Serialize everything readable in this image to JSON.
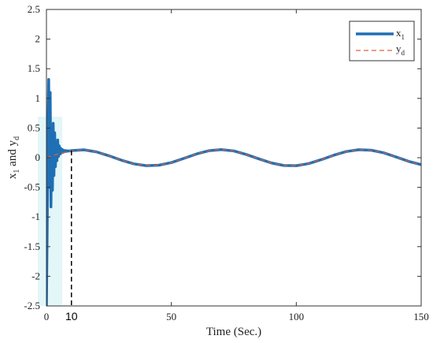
{
  "chart_data": {
    "type": "line",
    "xlabel": "Time (Sec.)",
    "ylabel": "x1 and yd",
    "ylabel_parts": {
      "p1": "x",
      "s1": "1",
      "p2": " and y",
      "s2": "d"
    },
    "xlim": [
      0,
      150
    ],
    "ylim": [
      -2.5,
      2.5
    ],
    "xticks": [
      "0",
      "50",
      "100",
      "150"
    ],
    "xtick_values": [
      0,
      50,
      100,
      150
    ],
    "yticks": [
      "-2.5",
      "-2",
      "-1.5",
      "-1",
      "-0.5",
      "0",
      "0.5",
      "1",
      "1.5",
      "2",
      "2.5"
    ],
    "ytick_values": [
      -2.5,
      -2,
      -1.5,
      -1,
      -0.5,
      0,
      0.5,
      1,
      1.5,
      2,
      2.5
    ],
    "grid": false,
    "legend_position": "top-right",
    "series": [
      {
        "name": "x1",
        "legend_main": "x",
        "legend_sub": "1",
        "color": "#1f6fb4",
        "style": "solid",
        "x": [
          0,
          0.3,
          0.6,
          0.9,
          1.2,
          1.5,
          1.8,
          2.1,
          2.4,
          2.7,
          3.0,
          3.3,
          3.6,
          3.9,
          4.2,
          4.5,
          4.8,
          5.1,
          5.4,
          5.7,
          6.0,
          6.3,
          6.6,
          6.9,
          7.2,
          7.5,
          7.8,
          8.1,
          8.4,
          8.7,
          9.0,
          9.5,
          10,
          15,
          20,
          25,
          30,
          35,
          40,
          45,
          50,
          55,
          60,
          65,
          70,
          75,
          80,
          85,
          90,
          95,
          100,
          105,
          110,
          115,
          120,
          125,
          130,
          135,
          140,
          145,
          150
        ],
        "y": [
          -2.5,
          -1.2,
          0.4,
          1.32,
          -0.5,
          1.1,
          -0.83,
          0.3,
          -0.55,
          0.58,
          -0.3,
          0.42,
          -0.15,
          0.25,
          -0.05,
          0.3,
          0.02,
          0.2,
          0.06,
          0.16,
          0.08,
          0.14,
          0.09,
          0.125,
          0.1,
          0.12,
          0.105,
          0.118,
          0.11,
          0.115,
          0.112,
          0.115,
          0.12,
          0.133,
          0.098,
          0.033,
          -0.042,
          -0.104,
          -0.134,
          -0.126,
          -0.082,
          -0.012,
          0.062,
          0.118,
          0.136,
          0.114,
          0.054,
          -0.019,
          -0.088,
          -0.131,
          -0.135,
          -0.099,
          -0.033,
          0.042,
          0.104,
          0.134,
          0.126,
          0.082,
          0.012,
          -0.062,
          -0.118
        ]
      },
      {
        "name": "yd",
        "legend_main": "y",
        "legend_sub": "d",
        "color": "#e0603a",
        "style": "dashed",
        "x": [
          0,
          5,
          10,
          15,
          20,
          25,
          30,
          35,
          40,
          45,
          50,
          55,
          60,
          65,
          70,
          75,
          80,
          85,
          90,
          95,
          100,
          105,
          110,
          115,
          120,
          125,
          130,
          135,
          140,
          145,
          150
        ],
        "y": [
          0,
          0.067,
          0.116,
          0.133,
          0.098,
          0.033,
          -0.042,
          -0.104,
          -0.134,
          -0.126,
          -0.082,
          -0.012,
          0.062,
          0.118,
          0.136,
          0.114,
          0.054,
          -0.019,
          -0.088,
          -0.131,
          -0.135,
          -0.099,
          -0.033,
          0.042,
          0.104,
          0.134,
          0.126,
          0.082,
          0.012,
          -0.062,
          -0.118
        ]
      }
    ],
    "annotation": {
      "label": "10",
      "x": 10,
      "y_from": -2.5,
      "y_to": 0.12
    }
  }
}
